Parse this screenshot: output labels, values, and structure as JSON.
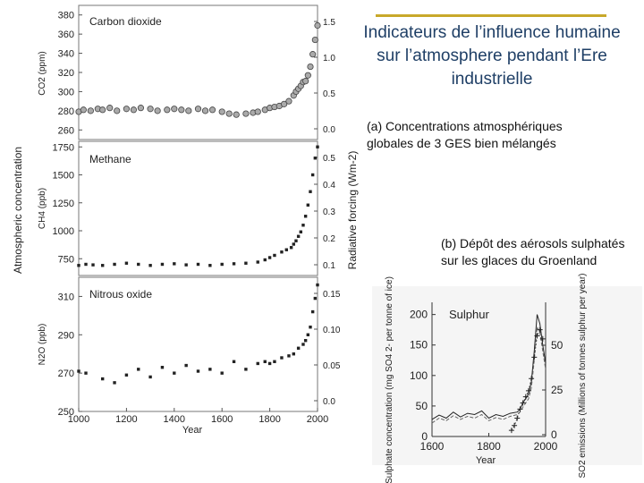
{
  "slide": {
    "title": "Indicateurs de l’influence humaine sur l’atmosphere pendant l’Ere industrielle",
    "caption_a": "(a) Concentrations atmosphériques globales de 3 GES bien mélangés",
    "caption_b": "(b) Dépôt des aérosols sulphatés sur les glaces du Groenland"
  },
  "chart_data": [
    {
      "type": "scatter",
      "title": "Carbon dioxide",
      "xlabel": "Year",
      "ylabel": "CO2 (ppm)",
      "y2label": "Radiative forcing (Wm-2)",
      "shared_ylabel": "Atmospheric concentration",
      "xlim": [
        1000,
        2000
      ],
      "ylim": [
        250,
        390
      ],
      "yticks": [
        260,
        280,
        300,
        320,
        340,
        360,
        380
      ],
      "y2ticks": [
        "0.0",
        "0.5",
        "1.0",
        "1.5"
      ],
      "x": [
        1000,
        1020,
        1050,
        1080,
        1100,
        1130,
        1160,
        1200,
        1230,
        1260,
        1300,
        1330,
        1370,
        1400,
        1430,
        1460,
        1500,
        1530,
        1560,
        1600,
        1630,
        1660,
        1700,
        1730,
        1750,
        1780,
        1800,
        1820,
        1840,
        1860,
        1880,
        1900,
        1910,
        1920,
        1930,
        1940,
        1950,
        1960,
        1970,
        1980,
        1990,
        2000
      ],
      "y": [
        279,
        281,
        280,
        282,
        281,
        283,
        280,
        282,
        281,
        283,
        282,
        280,
        281,
        282,
        281,
        280,
        282,
        280,
        281,
        279,
        277,
        276,
        277,
        278,
        279,
        281,
        283,
        284,
        285,
        287,
        290,
        296,
        300,
        303,
        306,
        310,
        311,
        317,
        326,
        339,
        354,
        369
      ]
    },
    {
      "type": "scatter",
      "title": "Methane",
      "ylabel": "CH4 (ppb)",
      "xlim": [
        1000,
        2000
      ],
      "ylim": [
        600,
        1800
      ],
      "yticks": [
        750,
        1000,
        1250,
        1500,
        1750
      ],
      "y2ticks": [
        "0.1",
        "0.2",
        "0.3",
        "0.4",
        "0.5"
      ],
      "x": [
        1000,
        1030,
        1060,
        1100,
        1150,
        1200,
        1250,
        1300,
        1350,
        1400,
        1450,
        1500,
        1550,
        1600,
        1650,
        1700,
        1750,
        1780,
        1800,
        1820,
        1850,
        1870,
        1890,
        1900,
        1910,
        1920,
        1930,
        1940,
        1950,
        1960,
        1970,
        1980,
        1990,
        2000
      ],
      "y": [
        690,
        700,
        695,
        690,
        700,
        710,
        700,
        690,
        700,
        705,
        695,
        700,
        690,
        700,
        705,
        710,
        720,
        740,
        760,
        780,
        810,
        830,
        850,
        880,
        910,
        950,
        990,
        1050,
        1130,
        1230,
        1350,
        1500,
        1650,
        1750
      ]
    },
    {
      "type": "scatter",
      "title": "Nitrous oxide",
      "ylabel": "N2O (ppb)",
      "xlim": [
        1000,
        2000
      ],
      "ylim": [
        250,
        320
      ],
      "yticks": [
        250,
        270,
        290,
        310
      ],
      "xticks": [
        1000,
        1200,
        1400,
        1600,
        1800,
        2000
      ],
      "y2ticks": [
        "0.0",
        "0.05",
        "0.10",
        "0.15"
      ],
      "x": [
        1000,
        1030,
        1100,
        1150,
        1200,
        1250,
        1300,
        1350,
        1400,
        1450,
        1500,
        1550,
        1600,
        1650,
        1700,
        1750,
        1780,
        1800,
        1820,
        1850,
        1880,
        1900,
        1920,
        1940,
        1950,
        1960,
        1970,
        1980,
        1990,
        2000
      ],
      "y": [
        271,
        270,
        267,
        265,
        269,
        272,
        268,
        273,
        270,
        274,
        271,
        272,
        270,
        276,
        272,
        275,
        276,
        275,
        276,
        278,
        279,
        280,
        283,
        285,
        287,
        290,
        294,
        302,
        309,
        316
      ]
    },
    {
      "type": "line",
      "title": "Sulphur",
      "xlabel": "Year",
      "ylabel": "Sulphate concentration (mg SO4 2- per tonne of ice)",
      "y2label": "SO2 emissions (Millions of tonnes sulphur per year)",
      "xlim": [
        1600,
        2000
      ],
      "ylim": [
        0,
        220
      ],
      "yticks": [
        0,
        50,
        100,
        150,
        200
      ],
      "xticks": [
        1600,
        1800,
        2000
      ],
      "y2ticks": [
        "0",
        "25",
        "50"
      ],
      "series": [
        {
          "x": [
            1600,
            1625,
            1650,
            1675,
            1700,
            1725,
            1750,
            1775,
            1800,
            1825,
            1850,
            1875,
            1900,
            1910,
            1920,
            1930,
            1940,
            1950,
            1960,
            1970,
            1980,
            1990,
            2000
          ],
          "y": [
            28,
            35,
            30,
            40,
            32,
            38,
            36,
            42,
            30,
            36,
            33,
            38,
            40,
            45,
            55,
            62,
            70,
            90,
            140,
            200,
            185,
            150,
            120
          ]
        },
        {
          "x": [
            1600,
            1625,
            1650,
            1675,
            1700,
            1725,
            1750,
            1775,
            1800,
            1825,
            1850,
            1875,
            1900,
            1910,
            1920,
            1930,
            1940,
            1950,
            1960,
            1970,
            1980,
            1990,
            2000
          ],
          "y": [
            22,
            30,
            26,
            34,
            28,
            33,
            30,
            36,
            26,
            31,
            28,
            33,
            36,
            40,
            48,
            55,
            62,
            80,
            125,
            180,
            170,
            140,
            110
          ]
        },
        {
          "x": [
            1880,
            1890,
            1900,
            1910,
            1920,
            1930,
            1940,
            1950,
            1960,
            1970,
            1980,
            1990
          ],
          "y": [
            10,
            18,
            30,
            45,
            55,
            65,
            75,
            95,
            130,
            165,
            175,
            160
          ]
        }
      ]
    }
  ]
}
